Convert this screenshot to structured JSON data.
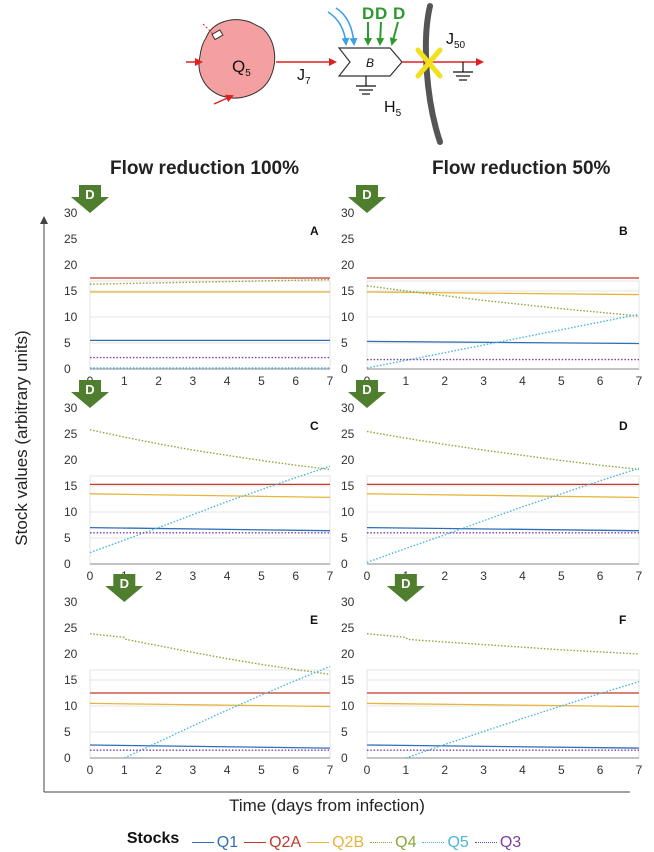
{
  "header": {
    "q_label": "Q",
    "q_sub": "5",
    "j7_label": "J",
    "j7_sub": "7",
    "b_label": "B",
    "h_label": "H",
    "h_sub": "5",
    "j50_label": "J",
    "j50_sub": "50",
    "d_letters": [
      "D",
      "D",
      "D"
    ]
  },
  "column_titles": [
    "Flow reduction 100%",
    "Flow reduction 50%"
  ],
  "y_axis_label": "Stock values (arbitrary units)",
  "x_axis_label": "Time (days from infection)",
  "legend": {
    "title": "Stocks",
    "items": [
      {
        "name": "Q1",
        "color": "#2f6fb5",
        "dash": "solid"
      },
      {
        "name": "Q2A",
        "color": "#c0392b",
        "dash": "solid"
      },
      {
        "name": "Q2B",
        "color": "#e8b43a",
        "dash": "solid"
      },
      {
        "name": "Q4",
        "color": "#8aa83a",
        "dash": "dotted"
      },
      {
        "name": "Q5",
        "color": "#49b6dd",
        "dash": "dotted"
      },
      {
        "name": "Q3",
        "color": "#7a3fa0",
        "dash": "dotted"
      }
    ]
  },
  "colors": {
    "d_arrow": "#4f7f2e",
    "axis": "#444444",
    "grid": "#dddddd",
    "q5_node": "#f4a0a0",
    "flow_arrow": "#e02020",
    "blue_arrow": "#3aa0e8",
    "green_arrow": "#2e9a2e",
    "cross": "#f2e01c"
  },
  "chart_data": [
    {
      "type": "line",
      "title": "A",
      "intervention_label": "D",
      "intervention_day": 0,
      "x_ticks": [
        0,
        1,
        2,
        3,
        4,
        5,
        6,
        7
      ],
      "y_ticks": [
        0,
        5,
        10,
        15,
        20,
        25,
        30
      ],
      "xlim": [
        0,
        7
      ],
      "ylim": [
        0,
        30
      ],
      "series": [
        {
          "name": "Q1",
          "x": [
            0,
            7
          ],
          "y": [
            5.5,
            5.5
          ]
        },
        {
          "name": "Q2A",
          "x": [
            0,
            7
          ],
          "y": [
            17.5,
            17.5
          ]
        },
        {
          "name": "Q2B",
          "x": [
            0,
            7
          ],
          "y": [
            14.8,
            14.8
          ]
        },
        {
          "name": "Q4",
          "x": [
            0,
            7
          ],
          "y": [
            16.3,
            17.2
          ]
        },
        {
          "name": "Q5",
          "x": [
            0,
            7
          ],
          "y": [
            0.2,
            0.2
          ]
        },
        {
          "name": "Q3",
          "x": [
            0,
            7
          ],
          "y": [
            2.2,
            2.2
          ]
        }
      ]
    },
    {
      "type": "line",
      "title": "B",
      "intervention_label": "D",
      "intervention_day": 0,
      "x_ticks": [
        0,
        1,
        2,
        3,
        4,
        5,
        6,
        7
      ],
      "y_ticks": [
        0,
        5,
        10,
        15,
        20,
        25,
        30
      ],
      "xlim": [
        0,
        7
      ],
      "ylim": [
        0,
        30
      ],
      "series": [
        {
          "name": "Q1",
          "x": [
            0,
            7
          ],
          "y": [
            5.3,
            4.9
          ]
        },
        {
          "name": "Q2A",
          "x": [
            0,
            7
          ],
          "y": [
            17.5,
            17.5
          ]
        },
        {
          "name": "Q2B",
          "x": [
            0,
            7
          ],
          "y": [
            14.8,
            14.3
          ]
        },
        {
          "name": "Q4",
          "x": [
            0,
            1,
            2,
            3,
            4,
            5,
            6,
            7
          ],
          "y": [
            16.0,
            15.0,
            14.1,
            13.2,
            12.4,
            11.6,
            10.9,
            10.2
          ]
        },
        {
          "name": "Q5",
          "x": [
            0,
            7
          ],
          "y": [
            0.2,
            10.5
          ]
        },
        {
          "name": "Q3",
          "x": [
            0,
            7
          ],
          "y": [
            1.8,
            1.8
          ]
        }
      ]
    },
    {
      "type": "line",
      "title": "C",
      "intervention_label": "D",
      "intervention_day": 0,
      "x_ticks": [
        0,
        1,
        2,
        3,
        4,
        5,
        6,
        7
      ],
      "y_ticks": [
        0,
        5,
        10,
        15,
        20,
        25,
        30
      ],
      "xlim": [
        0,
        7
      ],
      "ylim": [
        0,
        30
      ],
      "series": [
        {
          "name": "Q1",
          "x": [
            0,
            7
          ],
          "y": [
            7.0,
            6.4
          ]
        },
        {
          "name": "Q2A",
          "x": [
            0,
            7
          ],
          "y": [
            15.3,
            15.3
          ]
        },
        {
          "name": "Q2B",
          "x": [
            0,
            7
          ],
          "y": [
            13.5,
            12.8
          ]
        },
        {
          "name": "Q4",
          "x": [
            0,
            1,
            2,
            3,
            4,
            5,
            6,
            7
          ],
          "y": [
            25.8,
            24.4,
            23.1,
            21.9,
            20.9,
            19.9,
            19.0,
            18.2
          ]
        },
        {
          "name": "Q5",
          "x": [
            0,
            1,
            2,
            3,
            4,
            5,
            6,
            7
          ],
          "y": [
            2.2,
            4.6,
            7.0,
            9.5,
            12.0,
            14.3,
            16.6,
            18.8
          ]
        },
        {
          "name": "Q3",
          "x": [
            0,
            7
          ],
          "y": [
            6.0,
            6.0
          ]
        }
      ]
    },
    {
      "type": "line",
      "title": "D",
      "intervention_label": "D",
      "intervention_day": 0,
      "x_ticks": [
        0,
        1,
        2,
        3,
        4,
        5,
        6,
        7
      ],
      "y_ticks": [
        0,
        5,
        10,
        15,
        20,
        25,
        30
      ],
      "xlim": [
        0,
        7
      ],
      "ylim": [
        0,
        30
      ],
      "series": [
        {
          "name": "Q1",
          "x": [
            0,
            7
          ],
          "y": [
            7.0,
            6.4
          ]
        },
        {
          "name": "Q2A",
          "x": [
            0,
            7
          ],
          "y": [
            15.3,
            15.3
          ]
        },
        {
          "name": "Q2B",
          "x": [
            0,
            7
          ],
          "y": [
            13.5,
            12.8
          ]
        },
        {
          "name": "Q4",
          "x": [
            0,
            1,
            2,
            3,
            4,
            5,
            6,
            7
          ],
          "y": [
            25.5,
            24.2,
            23.0,
            21.9,
            20.9,
            19.9,
            19.0,
            18.2
          ]
        },
        {
          "name": "Q5",
          "x": [
            0,
            1,
            2,
            3,
            4,
            5,
            6,
            7
          ],
          "y": [
            0.3,
            3.0,
            5.6,
            8.3,
            11.0,
            13.5,
            16.0,
            18.4
          ]
        },
        {
          "name": "Q3",
          "x": [
            0,
            7
          ],
          "y": [
            6.0,
            6.0
          ]
        }
      ]
    },
    {
      "type": "line",
      "title": "E",
      "intervention_label": "D",
      "intervention_day": 1,
      "x_ticks": [
        0,
        1,
        2,
        3,
        4,
        5,
        6,
        7
      ],
      "y_ticks": [
        0,
        5,
        10,
        15,
        20,
        25,
        30
      ],
      "xlim": [
        0,
        7
      ],
      "ylim": [
        0,
        30
      ],
      "series": [
        {
          "name": "Q1",
          "x": [
            0,
            7
          ],
          "y": [
            2.5,
            1.9
          ]
        },
        {
          "name": "Q2A",
          "x": [
            0,
            7
          ],
          "y": [
            12.5,
            12.5
          ]
        },
        {
          "name": "Q2B",
          "x": [
            0,
            7
          ],
          "y": [
            10.5,
            9.9
          ]
        },
        {
          "name": "Q4",
          "x": [
            0,
            1,
            1.05,
            2,
            3,
            4,
            5,
            6,
            7
          ],
          "y": [
            23.9,
            23.2,
            22.8,
            21.6,
            20.3,
            19.1,
            18.0,
            17.0,
            16.1
          ]
        },
        {
          "name": "Q5",
          "x": [
            1,
            2,
            3,
            4,
            5,
            6,
            7
          ],
          "y": [
            0.0,
            3.1,
            6.2,
            9.2,
            12.1,
            14.9,
            17.6
          ]
        },
        {
          "name": "Q3",
          "x": [
            0,
            7
          ],
          "y": [
            1.5,
            1.5
          ]
        }
      ]
    },
    {
      "type": "line",
      "title": "F",
      "intervention_label": "D",
      "intervention_day": 1,
      "x_ticks": [
        0,
        1,
        2,
        3,
        4,
        5,
        6,
        7
      ],
      "y_ticks": [
        0,
        5,
        10,
        15,
        20,
        25,
        30
      ],
      "xlim": [
        0,
        7
      ],
      "ylim": [
        0,
        30
      ],
      "series": [
        {
          "name": "Q1",
          "x": [
            0,
            7
          ],
          "y": [
            2.5,
            1.9
          ]
        },
        {
          "name": "Q2A",
          "x": [
            0,
            7
          ],
          "y": [
            12.5,
            12.5
          ]
        },
        {
          "name": "Q2B",
          "x": [
            0,
            7
          ],
          "y": [
            10.5,
            9.9
          ]
        },
        {
          "name": "Q4",
          "x": [
            0,
            1,
            1.05,
            2,
            3,
            4,
            5,
            6,
            7
          ],
          "y": [
            23.9,
            23.2,
            22.8,
            22.3,
            21.8,
            21.3,
            20.8,
            20.4,
            20.0
          ]
        },
        {
          "name": "Q5",
          "x": [
            1,
            2,
            3,
            4,
            5,
            6,
            7
          ],
          "y": [
            0.0,
            2.6,
            5.1,
            7.6,
            10.0,
            12.4,
            14.7
          ]
        },
        {
          "name": "Q3",
          "x": [
            0,
            7
          ],
          "y": [
            1.5,
            1.5
          ]
        }
      ]
    }
  ]
}
